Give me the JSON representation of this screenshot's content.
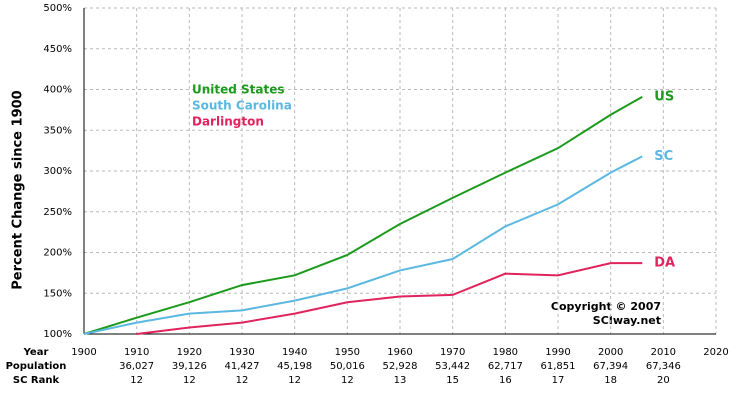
{
  "chart_data": {
    "type": "line",
    "y_label": "Percent Change since 1900",
    "x": [
      1900,
      1910,
      1920,
      1930,
      1940,
      1950,
      1960,
      1970,
      1980,
      1990,
      2000,
      2006
    ],
    "series": [
      {
        "name": "United States",
        "label": "US",
        "color": "#1c9a1c",
        "values": [
          100,
          120,
          139,
          160,
          172,
          197,
          235,
          267,
          298,
          328,
          369,
          391
        ]
      },
      {
        "name": "South Carolina",
        "label": "SC",
        "color": "#5bb8e0",
        "values": [
          100,
          114,
          125,
          129,
          141,
          156,
          178,
          192,
          232,
          259,
          298,
          318
        ]
      },
      {
        "name": "Darlington",
        "label": "DA",
        "color": "#e0245e",
        "values": [
          null,
          100,
          108,
          114,
          125,
          139,
          146,
          148,
          174,
          172,
          187,
          187
        ]
      }
    ],
    "xlim": [
      1900,
      2020
    ],
    "xticks": [
      1900,
      1910,
      1920,
      1930,
      1940,
      1950,
      1960,
      1970,
      1980,
      1990,
      2000,
      2010,
      2020
    ],
    "ylim": [
      100,
      500
    ],
    "yticks": [
      {
        "value": 100,
        "label": "100%"
      },
      {
        "value": 150,
        "label": "150%"
      },
      {
        "value": 200,
        "label": "200%"
      },
      {
        "value": 250,
        "label": "250%"
      },
      {
        "value": 300,
        "label": "300%"
      },
      {
        "value": 350,
        "label": "350%"
      },
      {
        "value": 400,
        "label": "400%"
      },
      {
        "value": 450,
        "label": "450%"
      },
      {
        "value": 500,
        "label": "500%"
      }
    ],
    "grid": true,
    "annotation": [
      "Copyright © 2007",
      "SCIway.net"
    ],
    "table": {
      "row_labels": [
        "Year",
        "Population",
        "SC Rank"
      ],
      "population": [
        "36,027",
        "39,126",
        "41,427",
        "45,198",
        "50,016",
        "52,928",
        "53,442",
        "62,717",
        "61,851",
        "67,394",
        "67,346"
      ],
      "rank": [
        12,
        12,
        12,
        12,
        12,
        13,
        15,
        16,
        17,
        18,
        20
      ]
    }
  }
}
